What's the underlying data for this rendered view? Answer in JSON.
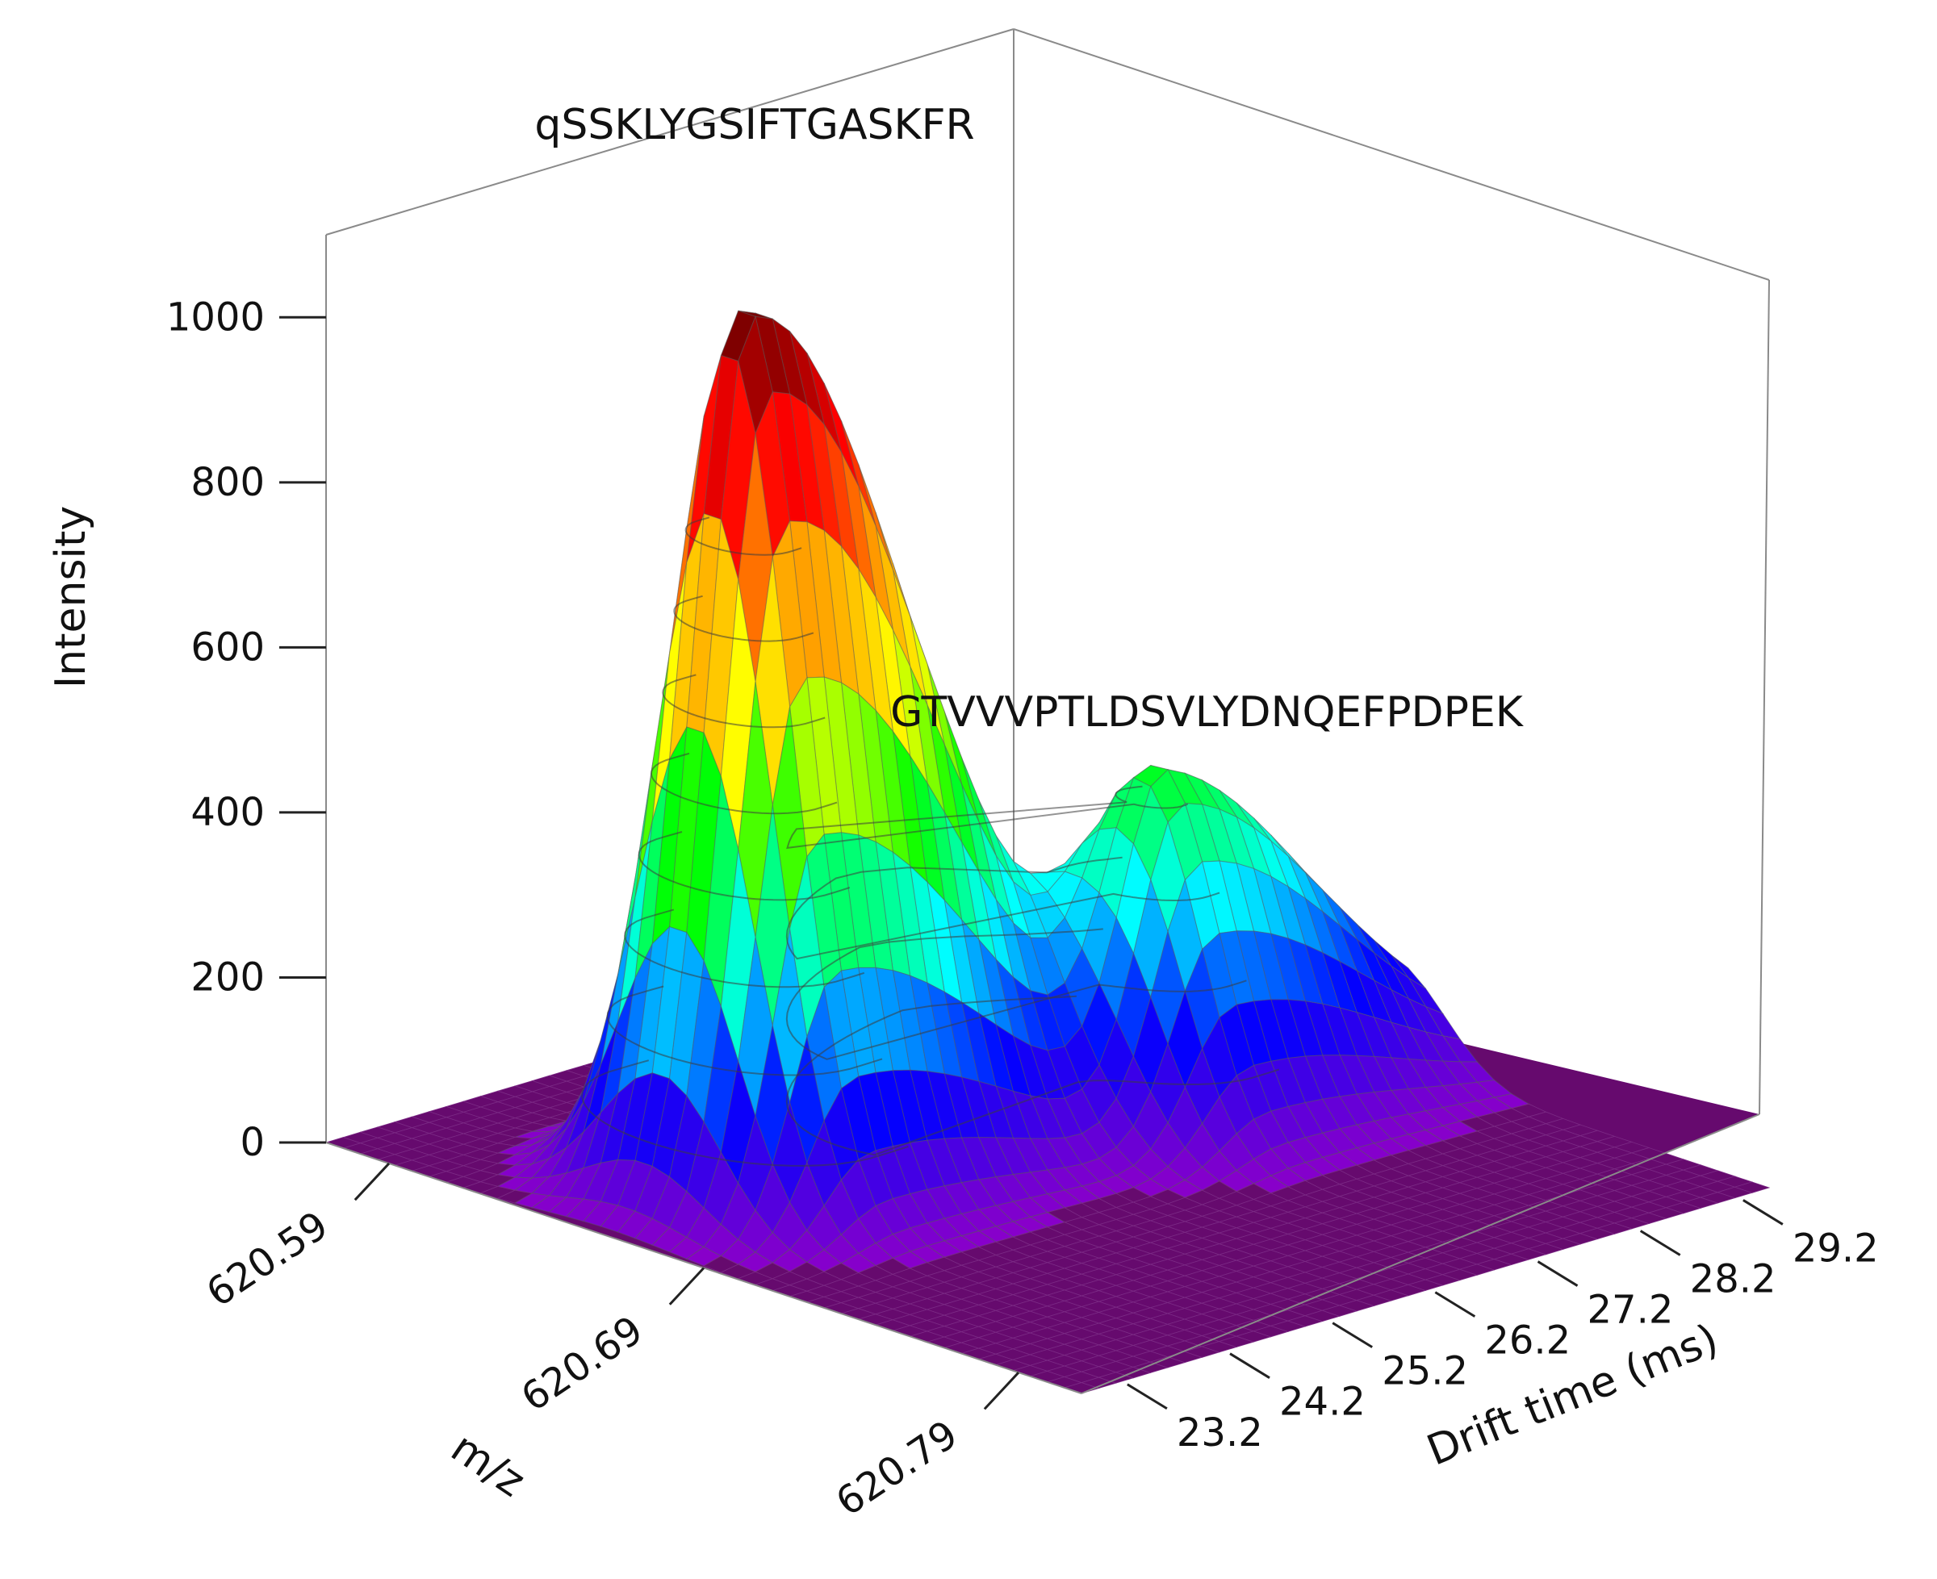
{
  "chart_data": {
    "type": "surface3d",
    "title": "",
    "colormap": [
      "#8e00c8",
      "#0000ff",
      "#00ffff",
      "#00ff00",
      "#ffff00",
      "#ff9900",
      "#ff0000",
      "#7a0000"
    ],
    "floor_color": "#660a6e",
    "axes": {
      "x": {
        "label": "m/z",
        "ticks": [
          620.59,
          620.69,
          620.79
        ],
        "tick_labels": [
          "620.59",
          "620.69",
          "620.79"
        ],
        "range": [
          620.57,
          620.81
        ]
      },
      "y": {
        "label": "Drift time (ms)",
        "ticks": [
          23.2,
          24.2,
          25.2,
          26.2,
          27.2,
          28.2,
          29.2
        ],
        "tick_labels": [
          "23.2",
          "24.2",
          "25.2",
          "26.2",
          "27.2",
          "28.2",
          "29.2"
        ],
        "range": [
          22.8,
          29.5
        ]
      },
      "z": {
        "label": "Intensity",
        "ticks": [
          0,
          200,
          400,
          600,
          800,
          1000
        ],
        "tick_labels": [
          "0",
          "200",
          "400",
          "600",
          "800",
          "1000"
        ],
        "range": [
          0,
          1100
        ]
      }
    },
    "peaks": [
      {
        "label": "qSSKLYGSIFTGASKFR",
        "mz": 620.66,
        "drift_time": 24.1,
        "intensity": 1080
      },
      {
        "label": "GTVVVPTLDSVLYDNQEFPDPEK",
        "mz": 620.69,
        "drift_time": 27.3,
        "intensity": 400
      }
    ]
  }
}
